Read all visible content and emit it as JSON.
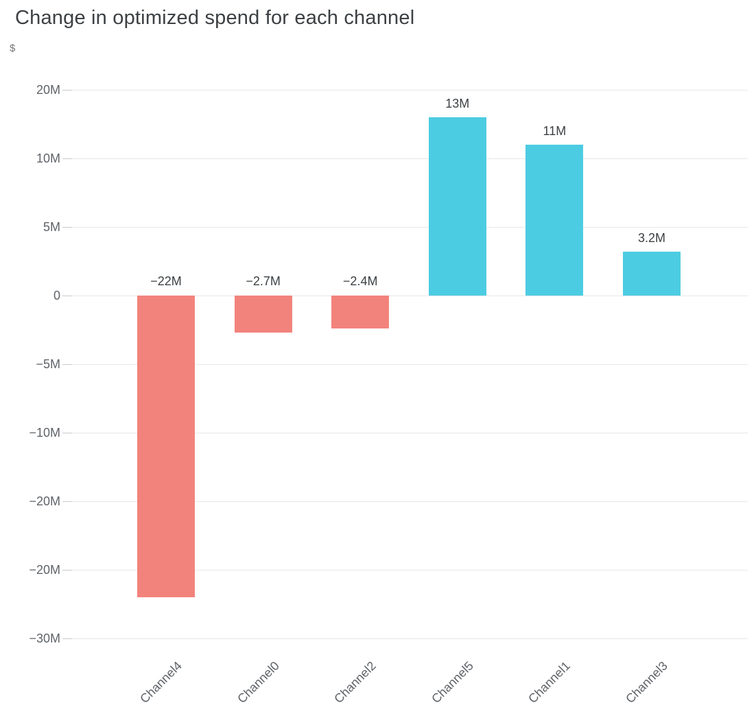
{
  "chart": {
    "title": "Change in optimized spend for each channel",
    "y_axis_unit": "$"
  },
  "chart_data": {
    "type": "bar",
    "title": "Change in optimized spend for each channel",
    "xlabel": "",
    "ylabel": "$",
    "categories": [
      "Channel4",
      "Channel0",
      "Channel2",
      "Channel5",
      "Channel1",
      "Channel3"
    ],
    "values_usd_millions": [
      -22,
      -2.7,
      -2.4,
      13,
      11,
      3.2
    ],
    "bar_value_labels": [
      "−22M",
      "−2.7M",
      "−2.4M",
      "13M",
      "11M",
      "3.2M"
    ],
    "y_tick_labels_top_to_bottom": [
      "20M",
      "10M",
      "5M",
      "0",
      "−5M",
      "−10M",
      "−20M",
      "−20M",
      "−30M"
    ],
    "grid": true,
    "legend": false,
    "colors": {
      "positive_bar": "#4CCCE2",
      "negative_bar": "#F2837C",
      "gridline": "#e7e7e7",
      "tick_mark": "#c9c9c9",
      "axis_label_text": "#5f6368",
      "value_label_text": "#3c4043",
      "title_text": "#3c4043"
    }
  }
}
